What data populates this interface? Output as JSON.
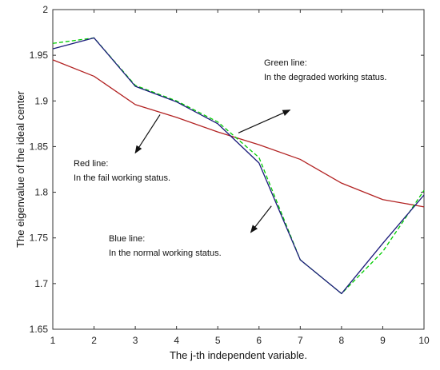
{
  "chart_data": {
    "type": "line",
    "xlabel": "The j-th independent variable.",
    "ylabel": "The eigenvalue of the ideal center",
    "x": [
      1,
      2,
      3,
      4,
      5,
      6,
      7,
      8,
      9,
      10
    ],
    "xlim": [
      1,
      10
    ],
    "ylim": [
      1.65,
      2.0
    ],
    "grid": false,
    "xticks": [
      "1",
      "2",
      "3",
      "4",
      "5",
      "6",
      "7",
      "8",
      "9",
      "10"
    ],
    "yticks": [
      "1.65",
      "1.7",
      "1.75",
      "1.8",
      "1.85",
      "1.9",
      "1.95",
      "2"
    ],
    "series": [
      {
        "color": "#b22222",
        "dash": "solid",
        "values": [
          1.945,
          1.927,
          1.896,
          1.882,
          1.866,
          1.852,
          1.836,
          1.81,
          1.792,
          1.784
        ]
      },
      {
        "color": "#00cc00",
        "dash": "dashed",
        "values": [
          1.963,
          1.969,
          1.917,
          1.9,
          1.877,
          1.838,
          1.726,
          1.689,
          1.735,
          1.802
        ]
      },
      {
        "color": "#1a1a7a",
        "dash": "solid",
        "values": [
          1.957,
          1.969,
          1.916,
          1.899,
          1.875,
          1.832,
          1.726,
          1.689,
          1.744,
          1.797
        ]
      }
    ],
    "annotations": [
      {
        "line1": "Green line:",
        "line2": "In the degraded working status.",
        "arrow_from": [
          5.5,
          1.865
        ],
        "arrow_to": [
          6.75,
          1.89
        ]
      },
      {
        "line1": "Red line:",
        "line2": "In the fail working status.",
        "arrow_from": [
          3.6,
          1.885
        ],
        "arrow_to": [
          3.0,
          1.843
        ]
      },
      {
        "line1": "Blue line:",
        "line2": "In the normal working status.",
        "arrow_from": [
          6.3,
          1.785
        ],
        "arrow_to": [
          5.8,
          1.756
        ]
      }
    ]
  }
}
